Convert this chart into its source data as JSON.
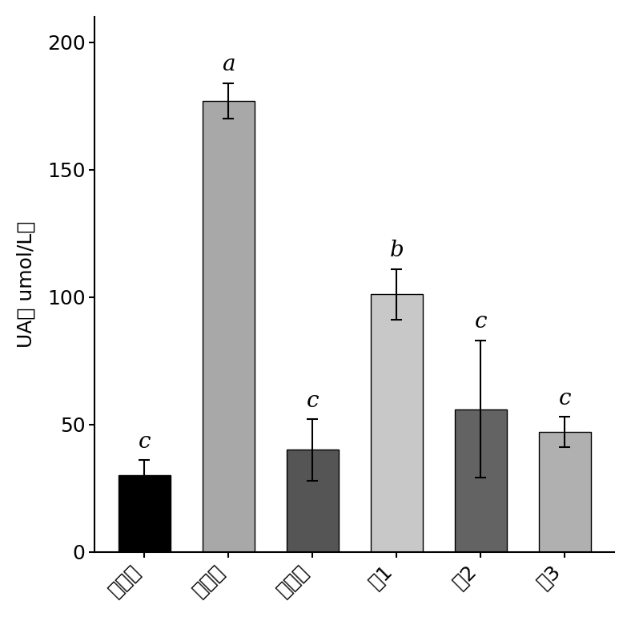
{
  "categories": [
    "空白组",
    "模型组",
    "扶他林",
    "样1",
    "样2",
    "样3"
  ],
  "values": [
    30,
    177,
    40,
    101,
    56,
    47
  ],
  "errors": [
    6,
    7,
    12,
    10,
    27,
    6
  ],
  "bar_colors": [
    "#000000",
    "#a8a8a8",
    "#555555",
    "#c8c8c8",
    "#636363",
    "#b0b0b0"
  ],
  "stat_labels": [
    "c",
    "a",
    "c",
    "b",
    "c",
    "c"
  ],
  "ylabel": "UA（ umol/L）",
  "ylim": [
    0,
    210
  ],
  "yticks": [
    0,
    50,
    100,
    150,
    200
  ],
  "background_color": "#ffffff",
  "bar_edge_color": "#000000",
  "bar_width": 0.62,
  "tick_fontsize": 18,
  "stat_fontsize": 20,
  "ylabel_fontsize": 18
}
